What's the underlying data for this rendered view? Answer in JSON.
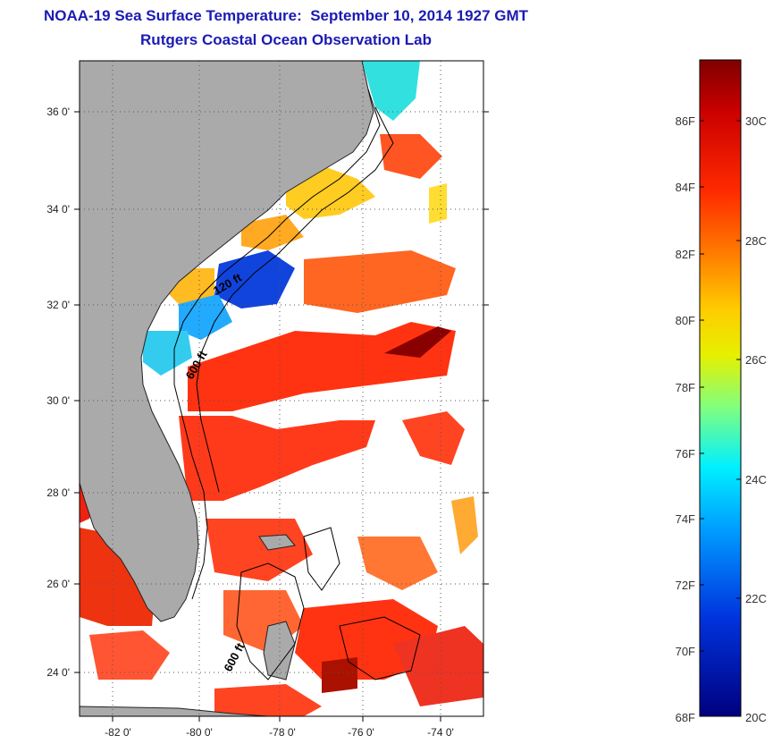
{
  "title": {
    "line1": "NOAA-19 Sea Surface Temperature:  September 10, 2014 1927 GMT",
    "line2": "Rutgers Coastal Ocean Observation Lab"
  },
  "axes": {
    "lat_labels": [
      "36 0'",
      "34 0'",
      "32 0'",
      "30 0'",
      "28 0'",
      "26 0'",
      "24 0'"
    ],
    "lon_labels": [
      "-82 0'",
      "-80 0'",
      "-78 0'",
      "-76 0'",
      "-74 0'"
    ]
  },
  "contours": {
    "labels": [
      "120 ft",
      "600 ft",
      "600 ft"
    ]
  },
  "colorbar": {
    "fahrenheit": [
      "86F",
      "84F",
      "82F",
      "80F",
      "78F",
      "76F",
      "74F",
      "72F",
      "70F",
      "68F"
    ],
    "celsius": [
      "30C",
      "28C",
      "26C",
      "24C",
      "22C",
      "20C"
    ],
    "colors": [
      "#7f0000",
      "#cc0000",
      "#ff3300",
      "#ff8800",
      "#ffcc00",
      "#d9f200",
      "#66ff99",
      "#00e5ff",
      "#0099ff",
      "#0033cc",
      "#00007f"
    ]
  },
  "map": {
    "land_color": "#aaaaaa",
    "water_no_data_color": "#ffffff"
  }
}
